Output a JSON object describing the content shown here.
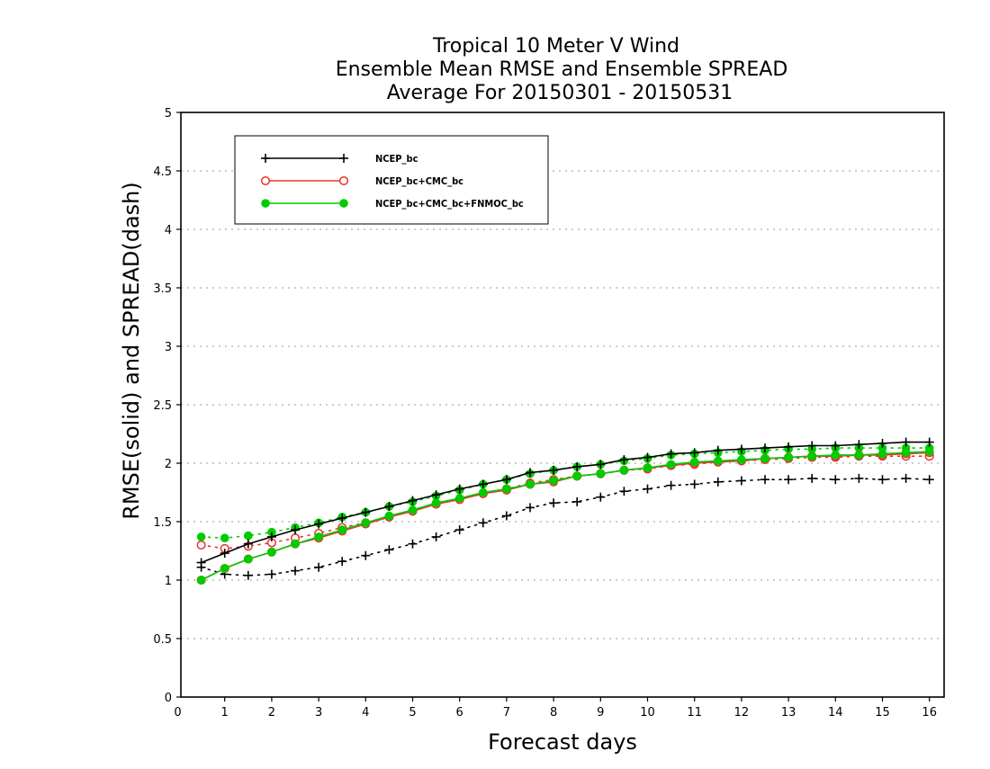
{
  "chart_data": {
    "type": "line",
    "title_lines": [
      "Tropical 10 Meter V Wind",
      "Ensemble Mean RMSE and Ensemble SPREAD",
      "Average For 20150301 - 20150531"
    ],
    "xlabel": "Forecast days",
    "ylabel": "RMSE(solid) and SPREAD(dash)",
    "xlim": [
      0,
      16.3
    ],
    "ylim": [
      0,
      5
    ],
    "xticks": [
      0,
      1,
      2,
      3,
      4,
      5,
      6,
      7,
      8,
      9,
      10,
      11,
      12,
      13,
      14,
      15,
      16
    ],
    "xtick_labels": [
      "0",
      "1",
      "2",
      "3",
      "4",
      "5",
      "6",
      "7",
      "8",
      "9",
      "10",
      "11",
      "12",
      "13",
      "14",
      "15",
      "16"
    ],
    "yticks": [
      0,
      0.5,
      1,
      1.5,
      2,
      2.5,
      3,
      3.5,
      4,
      4.5,
      5
    ],
    "ytick_labels": [
      "0",
      "0.5",
      "1",
      "1.5",
      "2",
      "2.5",
      "3",
      "3.5",
      "4",
      "4.5",
      "5"
    ],
    "grid": "horizontal dotted",
    "legend_position": "top-left",
    "x": [
      0.5,
      1,
      1.5,
      2,
      2.5,
      3,
      3.5,
      4,
      4.5,
      5,
      5.5,
      6,
      6.5,
      7,
      7.5,
      8,
      8.5,
      9,
      9.5,
      10,
      10.5,
      11,
      11.5,
      12,
      12.5,
      13,
      13.5,
      14,
      14.5,
      15,
      15.5,
      16
    ],
    "series": [
      {
        "name": "NCEP_bc",
        "color": "#000000",
        "marker": "plus",
        "rmse": [
          1.15,
          1.23,
          1.31,
          1.37,
          1.43,
          1.48,
          1.53,
          1.58,
          1.63,
          1.68,
          1.73,
          1.78,
          1.82,
          1.86,
          1.92,
          1.94,
          1.97,
          1.99,
          2.03,
          2.05,
          2.08,
          2.09,
          2.11,
          2.12,
          2.13,
          2.14,
          2.15,
          2.15,
          2.16,
          2.17,
          2.18,
          2.18
        ],
        "spread": [
          1.11,
          1.05,
          1.04,
          1.05,
          1.08,
          1.11,
          1.16,
          1.21,
          1.26,
          1.31,
          1.37,
          1.43,
          1.49,
          1.55,
          1.62,
          1.66,
          1.67,
          1.71,
          1.76,
          1.78,
          1.81,
          1.82,
          1.84,
          1.85,
          1.86,
          1.86,
          1.87,
          1.86,
          1.87,
          1.86,
          1.87,
          1.86
        ]
      },
      {
        "name": "NCEP_bc+CMC_bc",
        "color": "#e8342c",
        "marker": "open-circle",
        "rmse": [
          1.0,
          1.1,
          1.18,
          1.24,
          1.31,
          1.36,
          1.42,
          1.48,
          1.54,
          1.59,
          1.65,
          1.69,
          1.74,
          1.77,
          1.82,
          1.84,
          1.89,
          1.91,
          1.94,
          1.96,
          1.98,
          2.0,
          2.01,
          2.02,
          2.04,
          2.05,
          2.06,
          2.06,
          2.07,
          2.07,
          2.08,
          2.09
        ],
        "spread": [
          1.3,
          1.27,
          1.29,
          1.32,
          1.36,
          1.4,
          1.45,
          1.49,
          1.54,
          1.59,
          1.65,
          1.69,
          1.74,
          1.78,
          1.83,
          1.86,
          1.89,
          1.91,
          1.94,
          1.95,
          1.98,
          1.99,
          2.01,
          2.02,
          2.03,
          2.04,
          2.05,
          2.05,
          2.06,
          2.06,
          2.06,
          2.06
        ]
      },
      {
        "name": "NCEP_bc+CMC_bc+FNMOC_bc",
        "color": "#00cc00",
        "marker": "filled-circle",
        "rmse": [
          1.0,
          1.1,
          1.18,
          1.24,
          1.31,
          1.37,
          1.43,
          1.49,
          1.55,
          1.6,
          1.66,
          1.7,
          1.75,
          1.78,
          1.82,
          1.85,
          1.89,
          1.91,
          1.94,
          1.96,
          1.99,
          2.01,
          2.02,
          2.03,
          2.04,
          2.05,
          2.06,
          2.07,
          2.07,
          2.08,
          2.09,
          2.1
        ],
        "spread": [
          1.37,
          1.36,
          1.38,
          1.41,
          1.45,
          1.49,
          1.54,
          1.58,
          1.63,
          1.67,
          1.72,
          1.77,
          1.82,
          1.86,
          1.91,
          1.94,
          1.97,
          1.99,
          2.02,
          2.04,
          2.07,
          2.08,
          2.09,
          2.1,
          2.11,
          2.12,
          2.12,
          2.13,
          2.13,
          2.13,
          2.13,
          2.13
        ]
      }
    ]
  }
}
